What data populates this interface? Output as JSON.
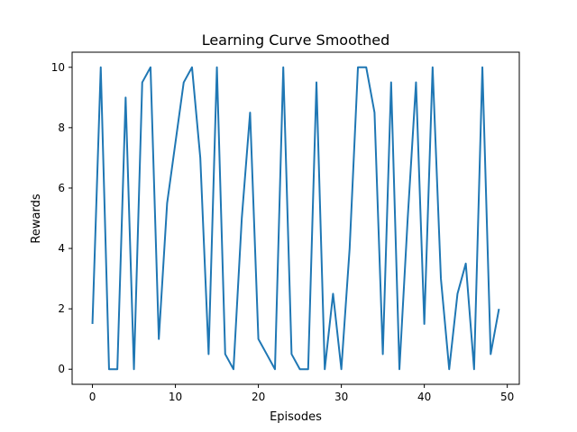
{
  "chart_data": {
    "type": "line",
    "title": "Learning Curve Smoothed",
    "xlabel": "Episodes",
    "ylabel": "Rewards",
    "xlim": [
      -2.45,
      51.45
    ],
    "ylim": [
      -0.5,
      10.5
    ],
    "xticks": [
      0,
      10,
      20,
      30,
      40,
      50
    ],
    "yticks": [
      0,
      2,
      4,
      6,
      8,
      10
    ],
    "grid": false,
    "line_color": "#1f77b4",
    "series": [
      {
        "x": [
          0,
          1,
          2,
          3,
          4,
          5,
          6,
          7,
          8,
          9,
          10,
          11,
          12,
          13,
          14,
          15,
          16,
          17,
          18,
          19,
          20,
          21,
          22,
          23,
          24,
          25,
          26,
          27,
          28,
          29,
          30,
          31,
          32,
          33,
          34,
          35,
          36,
          37,
          38,
          39,
          40,
          41,
          42,
          43,
          44,
          45,
          46,
          47,
          48,
          49
        ],
        "values": [
          1.5,
          10,
          0,
          0,
          9,
          0,
          9.5,
          10,
          1,
          5.5,
          7.5,
          9.5,
          10,
          7,
          0.5,
          10,
          0.5,
          0,
          5,
          8.5,
          1,
          0.5,
          0,
          10,
          0.5,
          0,
          0,
          9.5,
          0,
          2.5,
          0,
          4,
          10,
          10,
          8.5,
          0.5,
          9.5,
          0,
          5,
          9.5,
          1.5,
          10,
          3,
          0,
          2.5,
          3.5,
          0,
          10,
          0.5,
          2
        ]
      }
    ]
  }
}
